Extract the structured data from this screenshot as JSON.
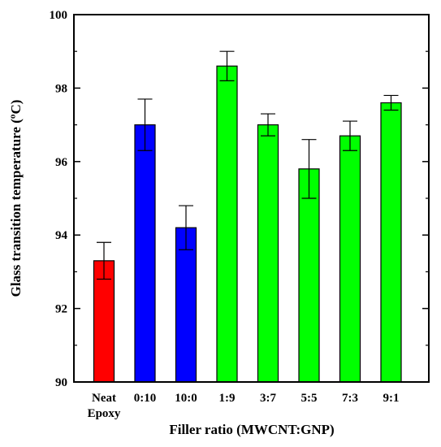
{
  "chart_data": {
    "type": "bar",
    "title": "",
    "xlabel": "Filler ratio (MWCNT:GNP)",
    "ylabel": "Glass transition temperature (ºC)",
    "ylim": [
      90,
      100
    ],
    "yticks": [
      90,
      92,
      94,
      96,
      98,
      100
    ],
    "grid": false,
    "categories": [
      [
        "Neat",
        "Epoxy"
      ],
      [
        "0:10"
      ],
      [
        "10:0"
      ],
      [
        "1:9"
      ],
      [
        "3:7"
      ],
      [
        "5:5"
      ],
      [
        "7:3"
      ],
      [
        "9:1"
      ]
    ],
    "values": [
      93.3,
      97.0,
      94.2,
      98.6,
      97.0,
      95.8,
      96.7,
      97.6
    ],
    "errors": [
      0.5,
      0.7,
      0.6,
      0.4,
      0.3,
      0.8,
      0.4,
      0.2
    ],
    "colors": [
      "#ff0000",
      "#0000ff",
      "#0000ff",
      "#00ff00",
      "#00ff00",
      "#00ff00",
      "#00ff00",
      "#00ff00"
    ]
  }
}
